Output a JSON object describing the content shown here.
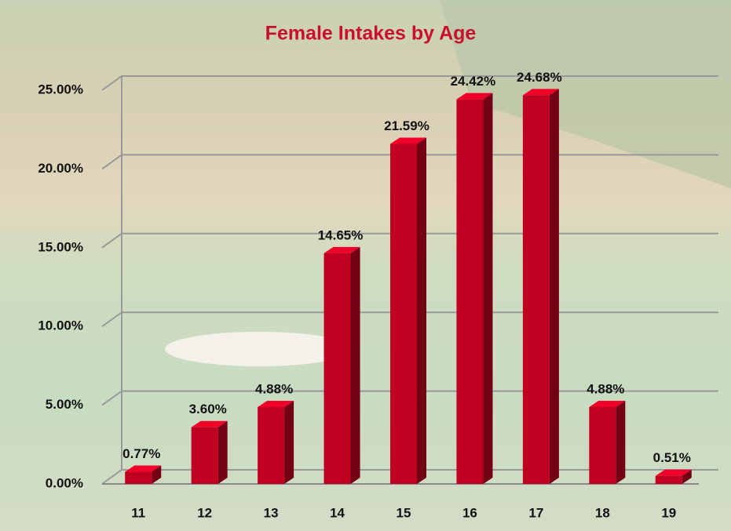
{
  "chart_data": {
    "type": "bar",
    "title": "Female Intakes by Age",
    "categories": [
      "11",
      "12",
      "13",
      "14",
      "15",
      "16",
      "17",
      "18",
      "19"
    ],
    "values": [
      0.77,
      3.6,
      4.88,
      14.65,
      21.59,
      24.42,
      24.68,
      4.88,
      0.51
    ],
    "value_labels": [
      "0.77%",
      "3.60%",
      "4.88%",
      "14.65%",
      "21.59%",
      "24.42%",
      "24.68%",
      "4.88%",
      "0.51%"
    ],
    "color": "#c00020",
    "ylim": [
      0,
      25
    ],
    "yticks": [
      {
        "value": 0,
        "label": "0.00%"
      },
      {
        "value": 5,
        "label": "5.00%"
      },
      {
        "value": 10,
        "label": "10.00%"
      },
      {
        "value": 15,
        "label": "15.00%"
      },
      {
        "value": 20,
        "label": "20.00%"
      },
      {
        "value": 25,
        "label": "25.00%"
      }
    ],
    "grid": true
  }
}
